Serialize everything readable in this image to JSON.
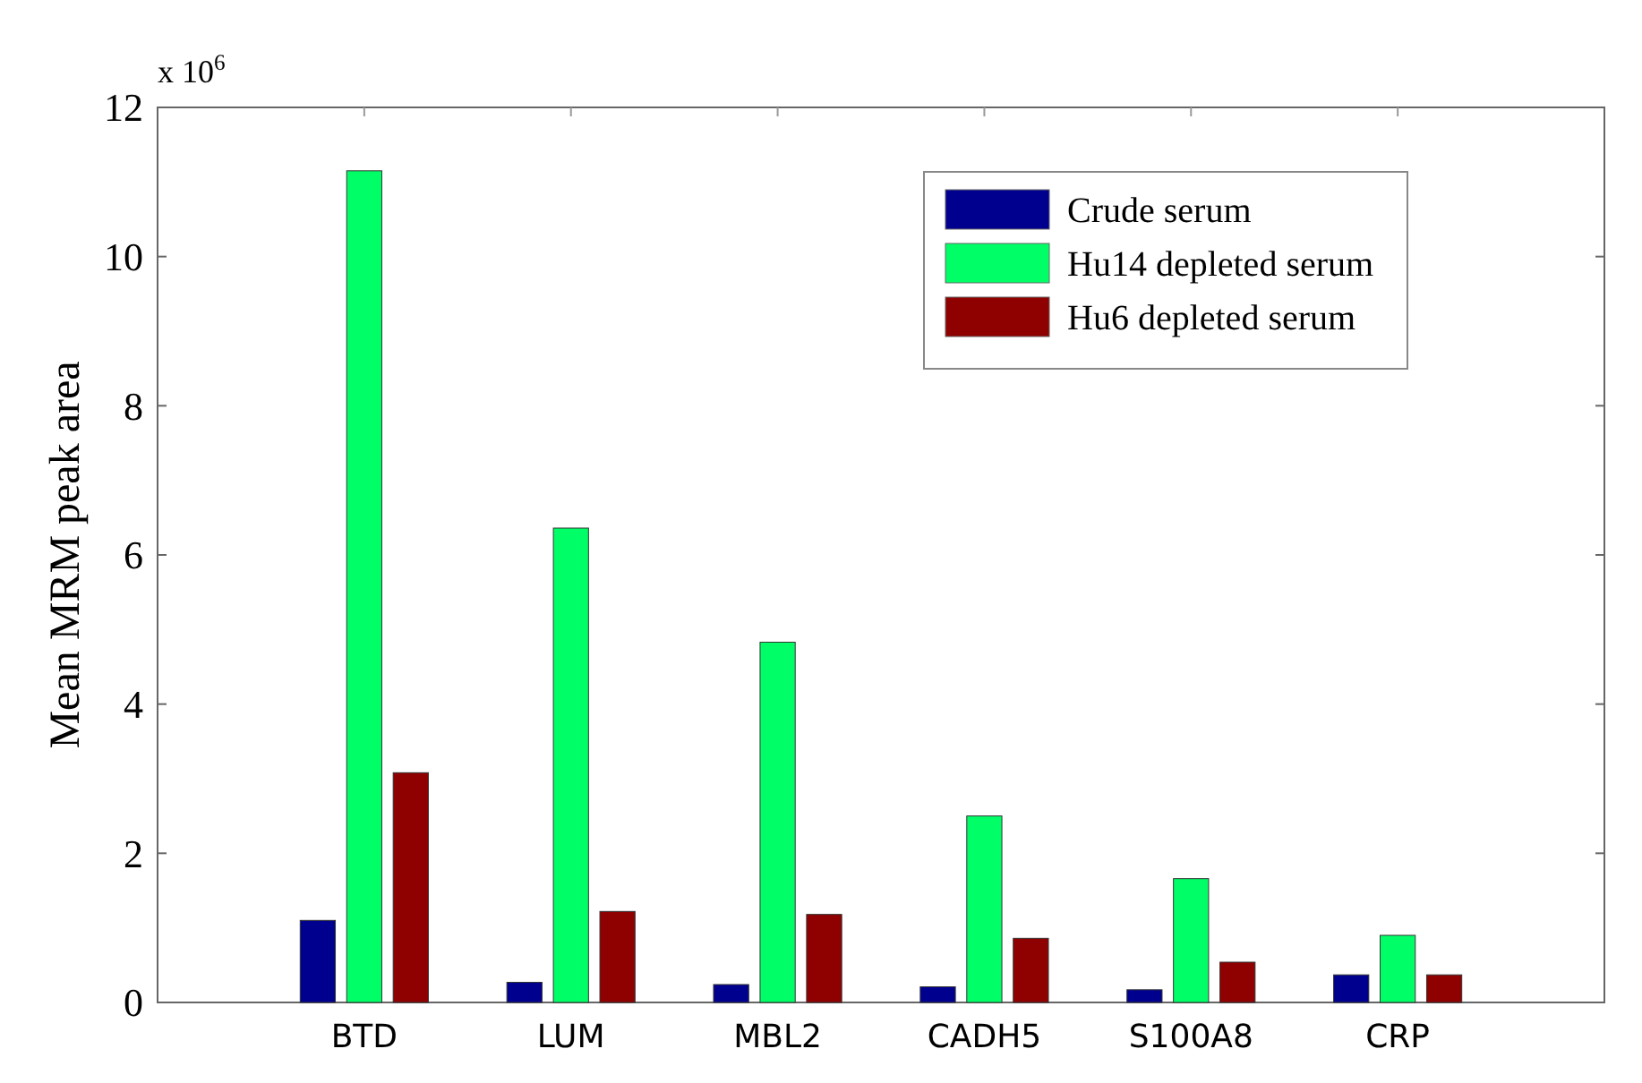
{
  "chart_data": {
    "type": "bar",
    "ylabel": "Mean MRM peak area",
    "annotations": [
      "x 10$^{6}$"
    ],
    "categories": [
      "BTD",
      "LUM",
      "MBL2",
      "CADH5",
      "S100A8",
      "CRP"
    ],
    "series": [
      {
        "name": "Crude serum",
        "color": "#00008f",
        "values": [
          1.1,
          0.27,
          0.24,
          0.21,
          0.17,
          0.37
        ]
      },
      {
        "name": "Hu14 depleted serum",
        "color": "#00ff66",
        "values": [
          11.15,
          6.36,
          4.83,
          2.5,
          1.66,
          0.9
        ]
      },
      {
        "name": "Hu6 depleted serum",
        "color": "#8f0000",
        "values": [
          3.08,
          1.22,
          1.18,
          0.86,
          0.54,
          0.37
        ]
      }
    ],
    "ylim": [
      0,
      12
    ],
    "yticks": [
      0,
      2,
      4,
      6,
      8,
      10,
      12
    ],
    "grid": false,
    "legend": "top right"
  }
}
